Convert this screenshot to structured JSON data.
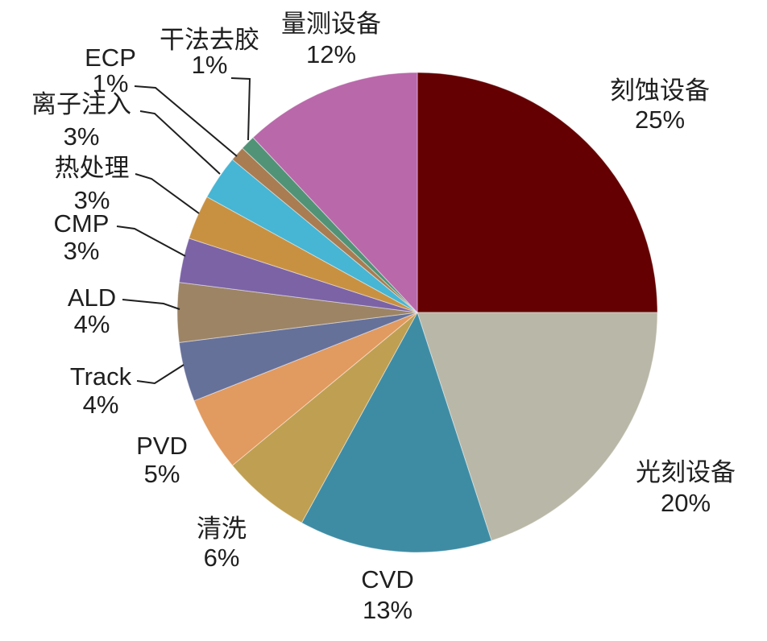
{
  "chart_data": {
    "type": "pie",
    "title": "",
    "value_unit": "%",
    "start_angle_deg": 0,
    "direction": "clockwise",
    "legend_position": "none",
    "grid": false,
    "background_color": "#FFFFFF",
    "label_text_color": "#1F1F1F",
    "leader_line_color": "#1F1F1F",
    "series": [
      {
        "key": "etching",
        "label": "刻蚀设备",
        "value": 25,
        "pct_label": "25%",
        "color": "#640002"
      },
      {
        "key": "lithography",
        "label": "光刻设备",
        "value": 20,
        "pct_label": "20%",
        "color": "#B9B7A7"
      },
      {
        "key": "cvd",
        "label": "CVD",
        "value": 13,
        "pct_label": "13%",
        "color": "#3E8CA4"
      },
      {
        "key": "cleaning",
        "label": "清洗",
        "value": 6,
        "pct_label": "6%",
        "color": "#BF9F51"
      },
      {
        "key": "pvd",
        "label": "PVD",
        "value": 5,
        "pct_label": "5%",
        "color": "#E19A5F"
      },
      {
        "key": "track",
        "label": "Track",
        "value": 4,
        "pct_label": "4%",
        "color": "#66719A"
      },
      {
        "key": "ald",
        "label": "ALD",
        "value": 4,
        "pct_label": "4%",
        "color": "#9C8465"
      },
      {
        "key": "cmp",
        "label": "CMP",
        "value": 3,
        "pct_label": "3%",
        "color": "#7C63A6"
      },
      {
        "key": "thermal-processing",
        "label": "热处理",
        "value": 3,
        "pct_label": "3%",
        "color": "#C89142"
      },
      {
        "key": "ion-implantation",
        "label": "离子注入",
        "value": 3,
        "pct_label": "3%",
        "color": "#47B5D4"
      },
      {
        "key": "ecp",
        "label": "ECP",
        "value": 1,
        "pct_label": "1%",
        "color": "#A97C52"
      },
      {
        "key": "dry-stripping",
        "label": "干法去胶",
        "value": 1,
        "pct_label": "1%",
        "color": "#519377"
      },
      {
        "key": "metrology",
        "label": "量测设备",
        "value": 12,
        "pct_label": "12%",
        "color": "#B968AA"
      }
    ]
  }
}
